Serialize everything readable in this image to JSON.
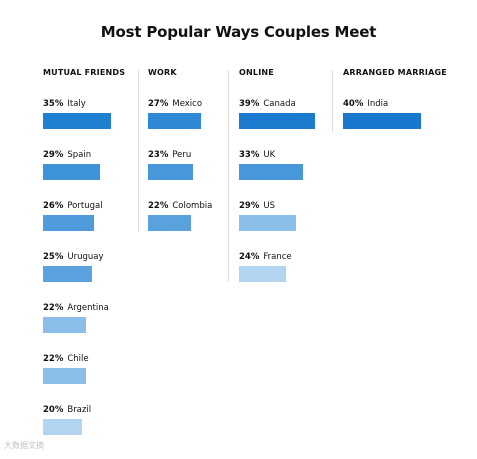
{
  "chart_data": {
    "type": "bar",
    "title": "Most Popular Ways Couples Meet",
    "value_suffix": "%",
    "groups": [
      {
        "name": "MUTUAL FRIENDS",
        "items": [
          {
            "label": "Italy",
            "value": 35,
            "color": "#1f7fd1"
          },
          {
            "label": "Spain",
            "value": 29,
            "color": "#3d92d8"
          },
          {
            "label": "Portugal",
            "value": 26,
            "color": "#4f9bdb"
          },
          {
            "label": "Uruguay",
            "value": 25,
            "color": "#5aa2de"
          },
          {
            "label": "Argentina",
            "value": 22,
            "color": "#8bbfe9"
          },
          {
            "label": "Chile",
            "value": 22,
            "color": "#8bbfe9"
          },
          {
            "label": "Brazil",
            "value": 20,
            "color": "#b3d5f2"
          }
        ]
      },
      {
        "name": "WORK",
        "items": [
          {
            "label": "Mexico",
            "value": 27,
            "color": "#2f89d6"
          },
          {
            "label": "Peru",
            "value": 23,
            "color": "#4797da"
          },
          {
            "label": "Colombia",
            "value": 22,
            "color": "#5aa2de"
          }
        ]
      },
      {
        "name": "ONLINE",
        "items": [
          {
            "label": "Canada",
            "value": 39,
            "color": "#1b7ccf"
          },
          {
            "label": "UK",
            "value": 33,
            "color": "#4797da"
          },
          {
            "label": "US",
            "value": 29,
            "color": "#8bbfe9"
          },
          {
            "label": "France",
            "value": 24,
            "color": "#b3d5f2"
          }
        ]
      },
      {
        "name": "ARRANGED MARRIAGE",
        "items": [
          {
            "label": "India",
            "value": 40,
            "color": "#1677cc"
          }
        ]
      }
    ]
  },
  "watermark": "大数据文摘"
}
